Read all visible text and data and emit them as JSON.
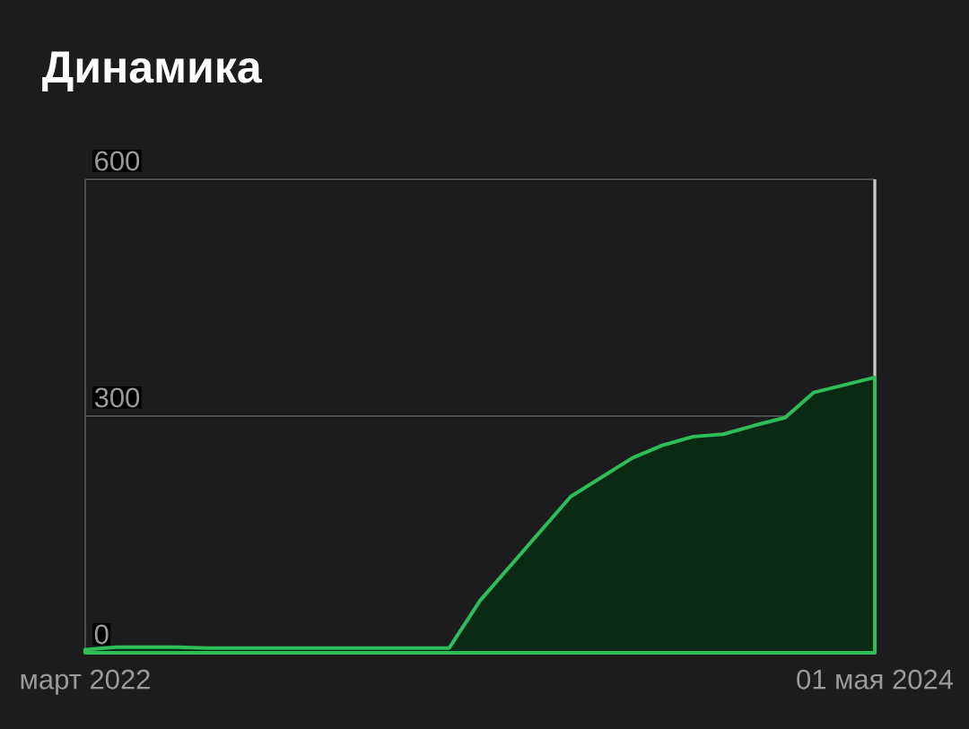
{
  "chart_data": {
    "type": "area",
    "title": "Динамика",
    "xlim": [
      "2022-03-01",
      "2024-05-01"
    ],
    "xticks": [
      {
        "value": "2022-03-01",
        "label": "март 2022"
      },
      {
        "value": "2024-05-01",
        "label": "01 мая 2024"
      }
    ],
    "ylim": [
      0,
      600
    ],
    "yticks": [
      0,
      300,
      600
    ],
    "grid": "y",
    "ref_lines": [
      {
        "axis": "x",
        "value": "2024-05-01",
        "color": "#c8c8c8"
      }
    ],
    "series": [
      {
        "color": "#2ebd59",
        "x": [
          "2022-03-01",
          "2022-04-01",
          "2022-06-01",
          "2022-07-01",
          "2023-03-01",
          "2023-04-01",
          "2023-07-01",
          "2023-09-01",
          "2023-10-01",
          "2023-11-01",
          "2023-12-01",
          "2024-01-01",
          "2024-02-01",
          "2024-03-01",
          "2024-05-01"
        ],
        "values": [
          4,
          7,
          7,
          6,
          6,
          66,
          198,
          247,
          263,
          274,
          277,
          288,
          298,
          330,
          349
        ]
      }
    ]
  }
}
